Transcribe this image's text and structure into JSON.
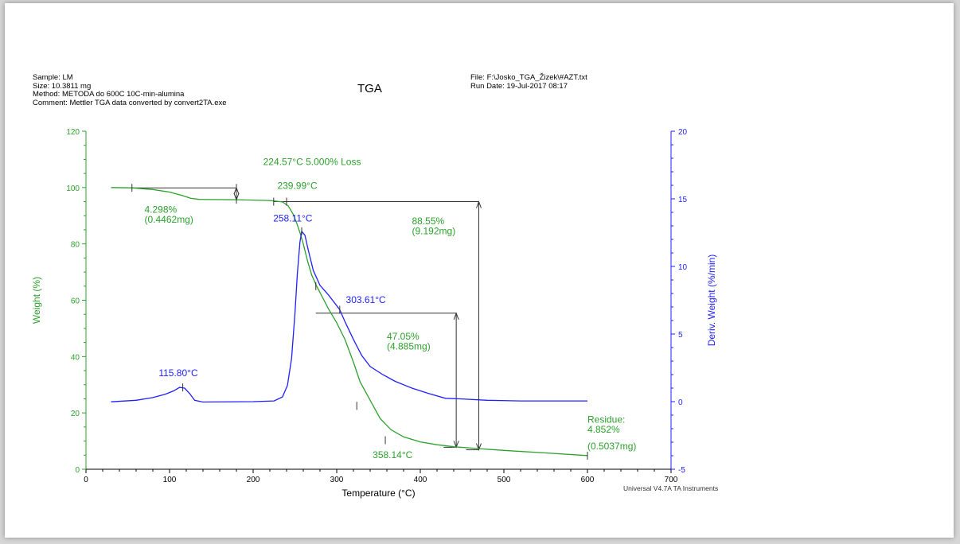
{
  "header": {
    "sample": "Sample:  LM",
    "size": "Size:  10.3811 mg",
    "method": "Method: METODA do 600C 10C-min-alumina",
    "comment": "Comment: Mettler TGA data converted by convert2TA.exe",
    "file": "File: F:\\Josko_TGA_Žizek\\#AZT.txt",
    "run_date": "Run Date: 19-Jul-2017 08:17"
  },
  "footer": "Universal V4.7A TA Instruments",
  "colors": {
    "weight": "#2ca02c",
    "deriv": "#1f1fff",
    "marker": "#333333"
  },
  "chart_data": {
    "type": "line",
    "title": "TGA",
    "xlabel": "Temperature (°C)",
    "ylabel_left": "Weight (%)",
    "ylabel_right": "Deriv. Weight (%/min)",
    "xlim": [
      0,
      700
    ],
    "ylim_left": [
      0,
      120
    ],
    "ylim_right": [
      -5,
      20
    ],
    "x_ticks": [
      "0",
      "100",
      "200",
      "300",
      "400",
      "500",
      "600",
      "700"
    ],
    "y_left_ticks": [
      "0",
      "20",
      "40",
      "60",
      "80",
      "100",
      "120"
    ],
    "y_right_ticks": [
      "-5",
      "0",
      "5",
      "10",
      "15",
      "20"
    ],
    "series": [
      {
        "axis": "left",
        "points": [
          [
            30,
            100
          ],
          [
            55,
            99.9
          ],
          [
            80,
            99.3
          ],
          [
            100,
            98.4
          ],
          [
            115,
            97.2
          ],
          [
            125,
            96.2
          ],
          [
            135,
            95.8
          ],
          [
            180,
            95.7
          ],
          [
            220,
            95.4
          ],
          [
            235,
            94.9
          ],
          [
            242,
            93.5
          ],
          [
            248,
            90.5
          ],
          [
            252,
            87.5
          ],
          [
            256,
            84
          ],
          [
            260,
            80
          ],
          [
            265,
            74
          ],
          [
            270,
            69
          ],
          [
            276,
            65
          ],
          [
            283,
            61
          ],
          [
            290,
            57
          ],
          [
            300,
            52
          ],
          [
            310,
            46
          ],
          [
            320,
            38
          ],
          [
            328,
            31
          ],
          [
            340,
            24.5
          ],
          [
            352,
            18
          ],
          [
            365,
            14
          ],
          [
            380,
            11.5
          ],
          [
            400,
            9.7
          ],
          [
            420,
            8.7
          ],
          [
            440,
            8
          ],
          [
            470,
            7.3
          ],
          [
            500,
            6.7
          ],
          [
            550,
            5.8
          ],
          [
            600,
            4.852
          ]
        ]
      },
      {
        "axis": "right",
        "points": [
          [
            30,
            -0.01
          ],
          [
            60,
            0.1
          ],
          [
            80,
            0.3
          ],
          [
            95,
            0.55
          ],
          [
            105,
            0.8
          ],
          [
            112,
            1.05
          ],
          [
            118,
            1.0
          ],
          [
            124,
            0.6
          ],
          [
            130,
            0.1
          ],
          [
            140,
            -0.03
          ],
          [
            200,
            0
          ],
          [
            225,
            0.05
          ],
          [
            235,
            0.35
          ],
          [
            241,
            1.2
          ],
          [
            246,
            3.2
          ],
          [
            250,
            6.5
          ],
          [
            253,
            9.5
          ],
          [
            256,
            11.8
          ],
          [
            258.11,
            12.6
          ],
          [
            262,
            12.3
          ],
          [
            266,
            11.2
          ],
          [
            272,
            9.7
          ],
          [
            280,
            8.6
          ],
          [
            290,
            7.9
          ],
          [
            300,
            7.1
          ],
          [
            303.61,
            6.8
          ],
          [
            310,
            5.9
          ],
          [
            320,
            4.6
          ],
          [
            330,
            3.4
          ],
          [
            340,
            2.6
          ],
          [
            355,
            2
          ],
          [
            370,
            1.5
          ],
          [
            390,
            1.0
          ],
          [
            410,
            0.6
          ],
          [
            430,
            0.25
          ],
          [
            450,
            0.2
          ],
          [
            480,
            0.1
          ],
          [
            520,
            0.05
          ],
          [
            600,
            0.05
          ]
        ]
      }
    ],
    "markers": [
      {
        "series": "weight",
        "x": 55,
        "y": 99.9
      },
      {
        "series": "weight",
        "x": 180,
        "y": 99.9
      },
      {
        "series": "weight",
        "x": 180,
        "y": 95.7
      },
      {
        "series": "weight",
        "x": 224.57,
        "y": 95.0
      },
      {
        "series": "weight",
        "x": 239.99,
        "y": 95.0
      },
      {
        "series": "weight",
        "x": 275,
        "y": 65
      },
      {
        "series": "weight",
        "x": 324,
        "y": 22.5
      },
      {
        "series": "weight",
        "x": 358.14,
        "y": 10.3
      },
      {
        "series": "weight",
        "x": 600,
        "y": 4.852
      },
      {
        "series": "deriv",
        "x": 115.8,
        "y": 1.05
      },
      {
        "series": "deriv",
        "x": 258.11,
        "y": 12.6
      },
      {
        "series": "deriv",
        "x": 303.61,
        "y": 6.8
      }
    ],
    "annotations": [
      {
        "text": "224.57°C 5.000% Loss",
        "x": 212,
        "y": 108,
        "color": "weight"
      },
      {
        "text": "239.99°C",
        "x": 229,
        "y": 99.5,
        "color": "weight"
      },
      {
        "text": "4.298%",
        "x": 70,
        "y": 91,
        "color": "weight"
      },
      {
        "text": "(0.4462mg)",
        "x": 70,
        "y": 87.5,
        "color": "weight"
      },
      {
        "text": "88.55%",
        "x": 390,
        "y": 87,
        "color": "weight"
      },
      {
        "text": "(9.192mg)",
        "x": 390,
        "y": 83.5,
        "color": "weight"
      },
      {
        "text": "47.05%",
        "x": 360,
        "y": 46,
        "color": "weight"
      },
      {
        "text": "(4.885mg)",
        "x": 360,
        "y": 42.5,
        "color": "weight"
      },
      {
        "text": "358.14°C",
        "x": 343,
        "y": 4,
        "color": "weight"
      },
      {
        "text": "Residue:",
        "x": 600,
        "y": 16.5,
        "color": "weight"
      },
      {
        "text": "4.852%",
        "x": 600,
        "y": 13,
        "color": "weight"
      },
      {
        "text": "(0.5037mg)",
        "x": 600,
        "y": 7,
        "color": "weight"
      },
      {
        "text": "115.80°C",
        "x": 87,
        "y": 33,
        "color": "deriv"
      },
      {
        "text": "258.11°C",
        "x": 224,
        "y": 88,
        "color": "deriv"
      },
      {
        "text": "303.61°C",
        "x": 311,
        "y": 59,
        "color": "deriv"
      }
    ],
    "step_lines": [
      {
        "x1": 55,
        "x2": 180,
        "y1": 99.9,
        "y2": 95.7,
        "xbar": 180,
        "label": "4.298%"
      },
      {
        "x1": 224.57,
        "x2": 470,
        "y1": 95.0,
        "y2": 6.9,
        "xbar": 470,
        "label": "88.55%"
      },
      {
        "x1": 275,
        "x2": 443,
        "y1": 55.4,
        "y2": 7.8,
        "xbar": 443,
        "label": "47.05%"
      }
    ]
  }
}
